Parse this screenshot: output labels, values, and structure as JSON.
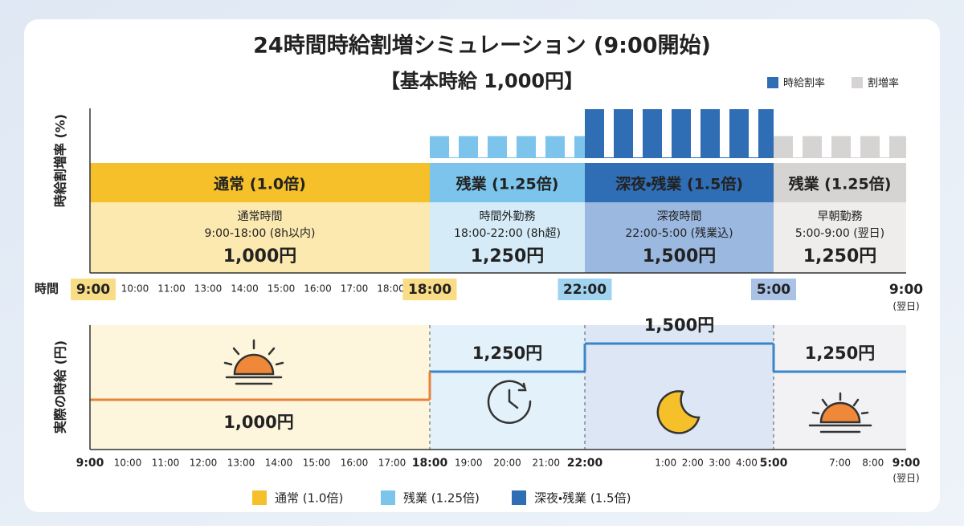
{
  "title": "24時間時給割増シミュレーション (9:00開始)",
  "subtitle": "【基本時給 1,000円】",
  "legend_top": [
    "時給割率",
    "割増率"
  ],
  "upper_axis_label": "時給割増率 (%)",
  "lower_axis_label": "実際の時給 (円)",
  "time_label": "時間",
  "segments": [
    {
      "name": "通常 (1.0倍)",
      "desc": "通常時間",
      "range": "9:00-18:00 (8h以内)",
      "wage_label": "1,000円",
      "rate": 1.0,
      "wage": 1000
    },
    {
      "name": "残業 (1.25倍)",
      "desc": "時間外勤務",
      "range": "18:00-22:00 (8h超)",
      "wage_label": "1,250円",
      "rate": 1.25,
      "wage": 1250
    },
    {
      "name": "深夜・残業 (1.5倍)",
      "desc": "深夜時間",
      "range": "22:00-5:00 (残業込)",
      "wage_label": "1,500円",
      "rate": 1.5,
      "wage": 1500
    },
    {
      "name": "残業 (1.25倍)",
      "desc": "早朝勤務",
      "range": "5:00-9:00 (翌日)",
      "wage_label": "1,250円",
      "rate": 1.25,
      "wage": 1250
    }
  ],
  "upper_small_times": [
    "10:00",
    "11:00",
    "13:00",
    "14:00",
    "15:00",
    "16:00",
    "17:00",
    "18:00"
  ],
  "upper_markers": [
    "9:00",
    "18:00",
    "22:00",
    "5:00",
    "9:00"
  ],
  "next_day": "(翌日)",
  "lower_ticks": [
    "9:00",
    "10:00",
    "11:00",
    "12:00",
    "13:00",
    "14:00",
    "15:00",
    "16:00",
    "17:00",
    "18:00",
    "19:00",
    "20:00",
    "21:00",
    "22:00",
    "1:00",
    "2:00",
    "3:00",
    "4:00",
    "5:00",
    "7:00",
    "8:00",
    "9:00"
  ],
  "legend_bottom": [
    "通常 (1.0倍)",
    "残業 (1.25倍)",
    "深夜・残業 (1.5倍)"
  ]
}
